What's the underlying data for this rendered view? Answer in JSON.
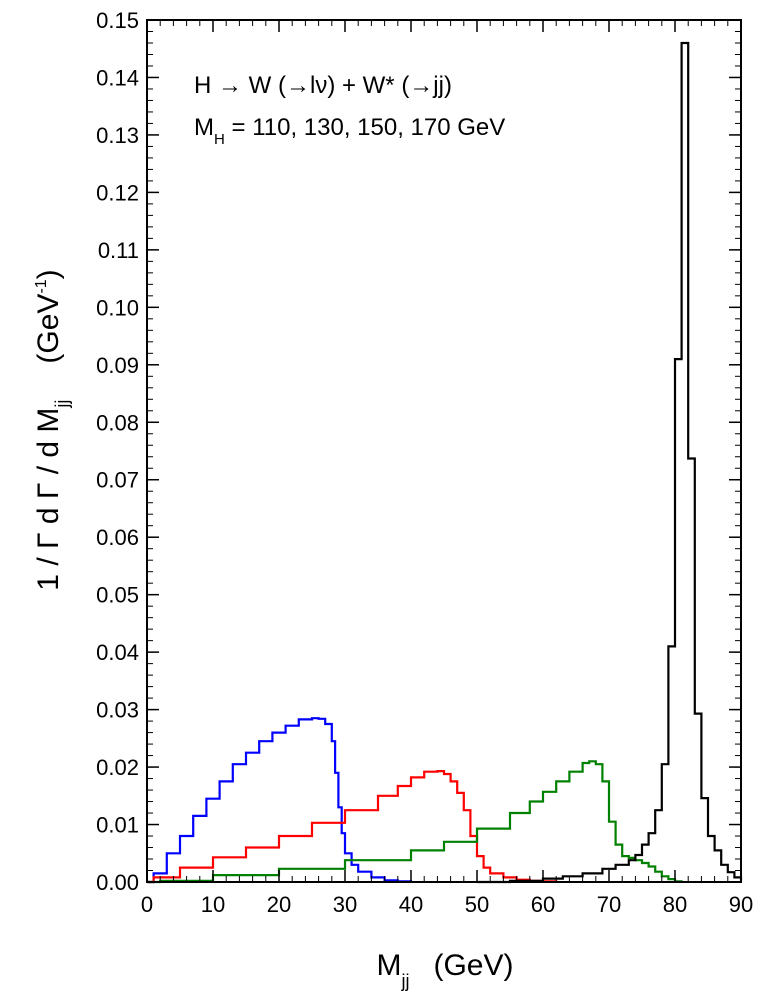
{
  "chart_data": {
    "type": "line",
    "step": true,
    "xlim": [
      0,
      90
    ],
    "ylim": [
      0,
      0.15
    ],
    "x_ticks": [
      "0",
      "10",
      "20",
      "30",
      "40",
      "50",
      "60",
      "70",
      "80",
      "90"
    ],
    "y_ticks": [
      "0.00",
      "0.01",
      "0.02",
      "0.03",
      "0.04",
      "0.05",
      "0.06",
      "0.07",
      "0.08",
      "0.09",
      "0.10",
      "0.11",
      "0.12",
      "0.13",
      "0.14",
      "0.15"
    ],
    "xlabel": {
      "main": "M",
      "sub": "jj",
      "unit": "(GeV)"
    },
    "ylabel": {
      "prefix": "1 / Γ  d Γ / d M",
      "sub": "jj",
      "unit_open": "(GeV",
      "unit_sup": "-1",
      "unit_close": ")"
    },
    "annotation": {
      "line1": "H → W (→lν) + W* (→jj)",
      "line2_main": "M",
      "line2_sub": "H",
      "line2_rest": " = 110, 130, 150, 170 GeV"
    },
    "series": [
      {
        "color": "#0000ff",
        "points": [
          [
            0,
            0
          ],
          [
            1,
            0.0015
          ],
          [
            3,
            0.005
          ],
          [
            5,
            0.008
          ],
          [
            7,
            0.0115
          ],
          [
            9,
            0.0145
          ],
          [
            11,
            0.0175
          ],
          [
            13,
            0.0205
          ],
          [
            15,
            0.0225
          ],
          [
            17,
            0.0245
          ],
          [
            19,
            0.026
          ],
          [
            21,
            0.0272
          ],
          [
            23,
            0.0283
          ],
          [
            25,
            0.0285
          ],
          [
            26,
            0.0284
          ],
          [
            27,
            0.0275
          ],
          [
            28,
            0.0245
          ],
          [
            28.5,
            0.019
          ],
          [
            29,
            0.013
          ],
          [
            29.5,
            0.0085
          ],
          [
            30,
            0.005
          ],
          [
            31,
            0.003
          ],
          [
            32,
            0.0018
          ],
          [
            34,
            0.0008
          ],
          [
            36,
            0.0003
          ],
          [
            38,
            0.0001
          ],
          [
            40,
            0.0
          ]
        ]
      },
      {
        "color": "#ff0000",
        "points": [
          [
            0,
            0
          ],
          [
            1,
            0.0008
          ],
          [
            5,
            0.0025
          ],
          [
            10,
            0.0043
          ],
          [
            15,
            0.006
          ],
          [
            20,
            0.008
          ],
          [
            25,
            0.0103
          ],
          [
            30,
            0.0125
          ],
          [
            35,
            0.015
          ],
          [
            38,
            0.0167
          ],
          [
            40,
            0.0182
          ],
          [
            42,
            0.0192
          ],
          [
            44,
            0.0193
          ],
          [
            45,
            0.0188
          ],
          [
            46,
            0.0175
          ],
          [
            47,
            0.0155
          ],
          [
            48,
            0.0125
          ],
          [
            49,
            0.008
          ],
          [
            50,
            0.0045
          ],
          [
            51,
            0.0025
          ],
          [
            52,
            0.0015
          ],
          [
            54,
            0.0008
          ],
          [
            56,
            0.0004
          ],
          [
            58,
            0.0002
          ],
          [
            60,
            0.0001
          ],
          [
            62,
            0.0
          ]
        ]
      },
      {
        "color": "#008000",
        "points": [
          [
            0,
            0
          ],
          [
            2,
            0.0002
          ],
          [
            10,
            0.0012
          ],
          [
            20,
            0.0023
          ],
          [
            30,
            0.0038
          ],
          [
            40,
            0.0055
          ],
          [
            45,
            0.007
          ],
          [
            50,
            0.0093
          ],
          [
            55,
            0.012
          ],
          [
            58,
            0.014
          ],
          [
            60,
            0.0157
          ],
          [
            62,
            0.0175
          ],
          [
            64,
            0.0192
          ],
          [
            66,
            0.0207
          ],
          [
            67,
            0.021
          ],
          [
            68,
            0.0205
          ],
          [
            69,
            0.0175
          ],
          [
            70,
            0.0105
          ],
          [
            71,
            0.0065
          ],
          [
            72,
            0.0045
          ],
          [
            73,
            0.0042
          ],
          [
            74,
            0.0038
          ],
          [
            75,
            0.0033
          ],
          [
            76,
            0.0027
          ],
          [
            77,
            0.0018
          ],
          [
            78,
            0.001
          ],
          [
            79,
            0.0005
          ],
          [
            80,
            0.0001
          ],
          [
            81,
            0.0
          ]
        ]
      },
      {
        "color": "#000000",
        "points": [
          [
            50,
            0
          ],
          [
            55,
            0.0002
          ],
          [
            60,
            0.0006
          ],
          [
            63,
            0.001
          ],
          [
            66,
            0.0015
          ],
          [
            69,
            0.0023
          ],
          [
            71,
            0.003
          ],
          [
            73,
            0.0038
          ],
          [
            74,
            0.0047
          ],
          [
            75,
            0.0065
          ],
          [
            76,
            0.0085
          ],
          [
            77,
            0.0125
          ],
          [
            78,
            0.0205
          ],
          [
            79,
            0.041
          ],
          [
            80,
            0.091
          ],
          [
            81,
            0.146
          ],
          [
            81.5,
            0.146
          ],
          [
            82,
            0.0737
          ],
          [
            83,
            0.0293
          ],
          [
            84,
            0.0146
          ],
          [
            85,
            0.008
          ],
          [
            86,
            0.0055
          ],
          [
            87,
            0.003
          ],
          [
            88,
            0.0017
          ],
          [
            89,
            0.0008
          ],
          [
            90,
            0.0003
          ]
        ]
      }
    ]
  }
}
